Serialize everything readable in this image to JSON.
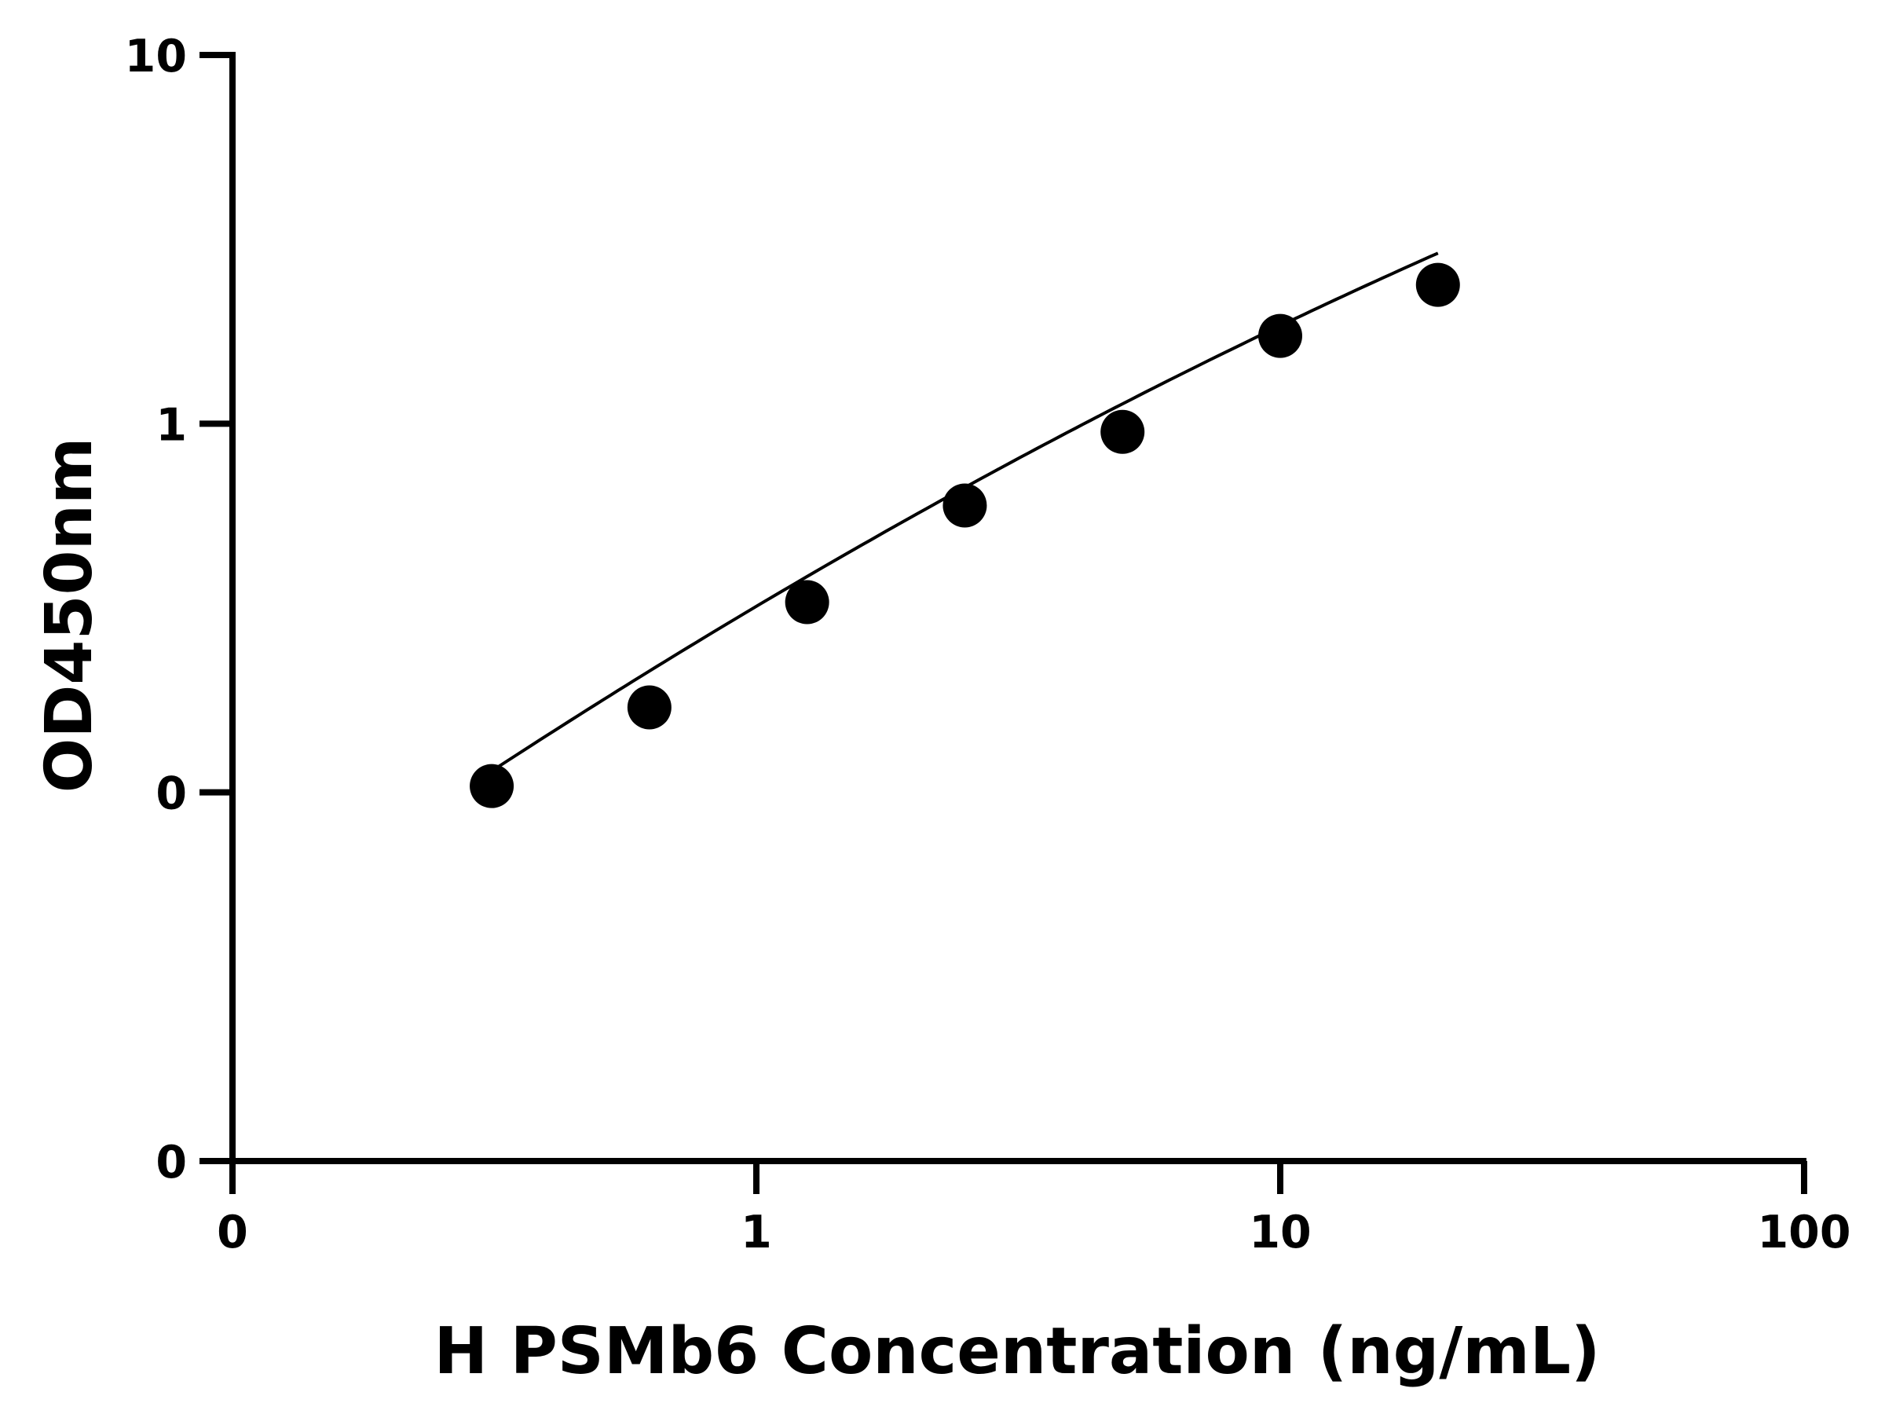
{
  "chart_data": {
    "type": "scatter",
    "title": "",
    "xlabel": "H PSMb6 Concentration (ng/mL)",
    "ylabel": "OD450nm",
    "x_scale": "log",
    "y_scale": "log",
    "x_ticks": [
      {
        "value": 0.1,
        "label": "0"
      },
      {
        "value": 1,
        "label": "1"
      },
      {
        "value": 10,
        "label": "10"
      },
      {
        "value": 100,
        "label": "100"
      }
    ],
    "y_ticks": [
      {
        "value": 0.01,
        "label": "0"
      },
      {
        "value": 0.1,
        "label": "0"
      },
      {
        "value": 1,
        "label": "1"
      },
      {
        "value": 10,
        "label": "10"
      }
    ],
    "xlim": [
      0.1,
      100
    ],
    "ylim": [
      0.01,
      10
    ],
    "grid": false,
    "legend": "none",
    "colors": {
      "points": "#000000",
      "curve": "#000000",
      "axes": "#000000"
    },
    "series": [
      {
        "x": [
          0.3125,
          0.625,
          1.25,
          2.5,
          5,
          10,
          20
        ],
        "y": [
          0.104,
          0.17,
          0.328,
          0.6,
          0.95,
          1.73,
          2.38
        ],
        "fit_curve": true
      }
    ]
  }
}
